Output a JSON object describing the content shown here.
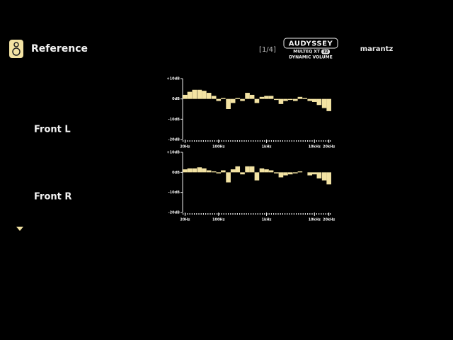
{
  "header": {
    "title": "Reference",
    "page": "[1/4]",
    "logo_line1": "AUDYSSEY",
    "logo_line2": "MULTEQ XT",
    "logo_badge": "32",
    "logo_line3": "DYNAMIC VOLUME",
    "brand": "marantz"
  },
  "channels": [
    "Front L",
    "Front R"
  ],
  "chart_data": [
    {
      "type": "bar",
      "xscale": "log",
      "color": "#f3e3a3",
      "x": [
        20,
        25,
        31.5,
        40,
        50,
        63,
        80,
        100,
        125,
        160,
        200,
        250,
        315,
        400,
        500,
        630,
        800,
        1000,
        1250,
        1600,
        2000,
        2500,
        3150,
        4000,
        5000,
        6300,
        8000,
        10000,
        12500,
        16000,
        20000
      ],
      "values": [
        2,
        3.5,
        4.5,
        4.5,
        4,
        3,
        1.5,
        -1,
        0.5,
        -5,
        -2,
        0.5,
        -1,
        3,
        2,
        -2,
        1,
        1.5,
        1.5,
        -0.5,
        -2.5,
        -1,
        -0.5,
        -1,
        1,
        0.5,
        -1,
        -1.5,
        -3,
        -4.5,
        -6
      ],
      "xlim": [
        17.8,
        22400
      ],
      "ylim": [
        -20,
        10
      ],
      "xticks": [
        {
          "value": 20,
          "label": "20Hz"
        },
        {
          "value": 100,
          "label": "100Hz"
        },
        {
          "value": 1000,
          "label": "1kHz"
        },
        {
          "value": 10000,
          "label": "10kHz"
        },
        {
          "value": 20000,
          "label": "20kHz"
        }
      ],
      "yticks": [
        {
          "value": 10,
          "label": "+10dB"
        },
        {
          "value": 0,
          "label": "0dB"
        },
        {
          "value": -10,
          "label": "-10dB"
        },
        {
          "value": -20,
          "label": "-20dB"
        }
      ]
    },
    {
      "type": "bar",
      "xscale": "log",
      "color": "#f3e3a3",
      "x": [
        20,
        25,
        31.5,
        40,
        50,
        63,
        80,
        100,
        125,
        160,
        200,
        250,
        315,
        400,
        500,
        630,
        800,
        1000,
        1250,
        1600,
        2000,
        2500,
        3150,
        4000,
        5000,
        6300,
        8000,
        10000,
        12500,
        16000,
        20000
      ],
      "values": [
        1.5,
        2,
        2,
        2.5,
        2,
        1,
        0.5,
        -0.5,
        1,
        -5,
        1.5,
        3,
        -1,
        3,
        3,
        -4,
        2,
        1.5,
        1,
        -0.5,
        -2.5,
        -1.5,
        -1,
        -0.5,
        0.5,
        0,
        -1.5,
        -1,
        -3,
        -4,
        -6
      ],
      "xlim": [
        17.8,
        22400
      ],
      "ylim": [
        -20,
        10
      ],
      "xticks": [
        {
          "value": 20,
          "label": "20Hz"
        },
        {
          "value": 100,
          "label": "100Hz"
        },
        {
          "value": 1000,
          "label": "1kHz"
        },
        {
          "value": 10000,
          "label": "10kHz"
        },
        {
          "value": 20000,
          "label": "20kHz"
        }
      ],
      "yticks": [
        {
          "value": 10,
          "label": "+10dB"
        },
        {
          "value": 0,
          "label": "0dB"
        },
        {
          "value": -10,
          "label": "-10dB"
        },
        {
          "value": -20,
          "label": "-20dB"
        }
      ]
    }
  ]
}
